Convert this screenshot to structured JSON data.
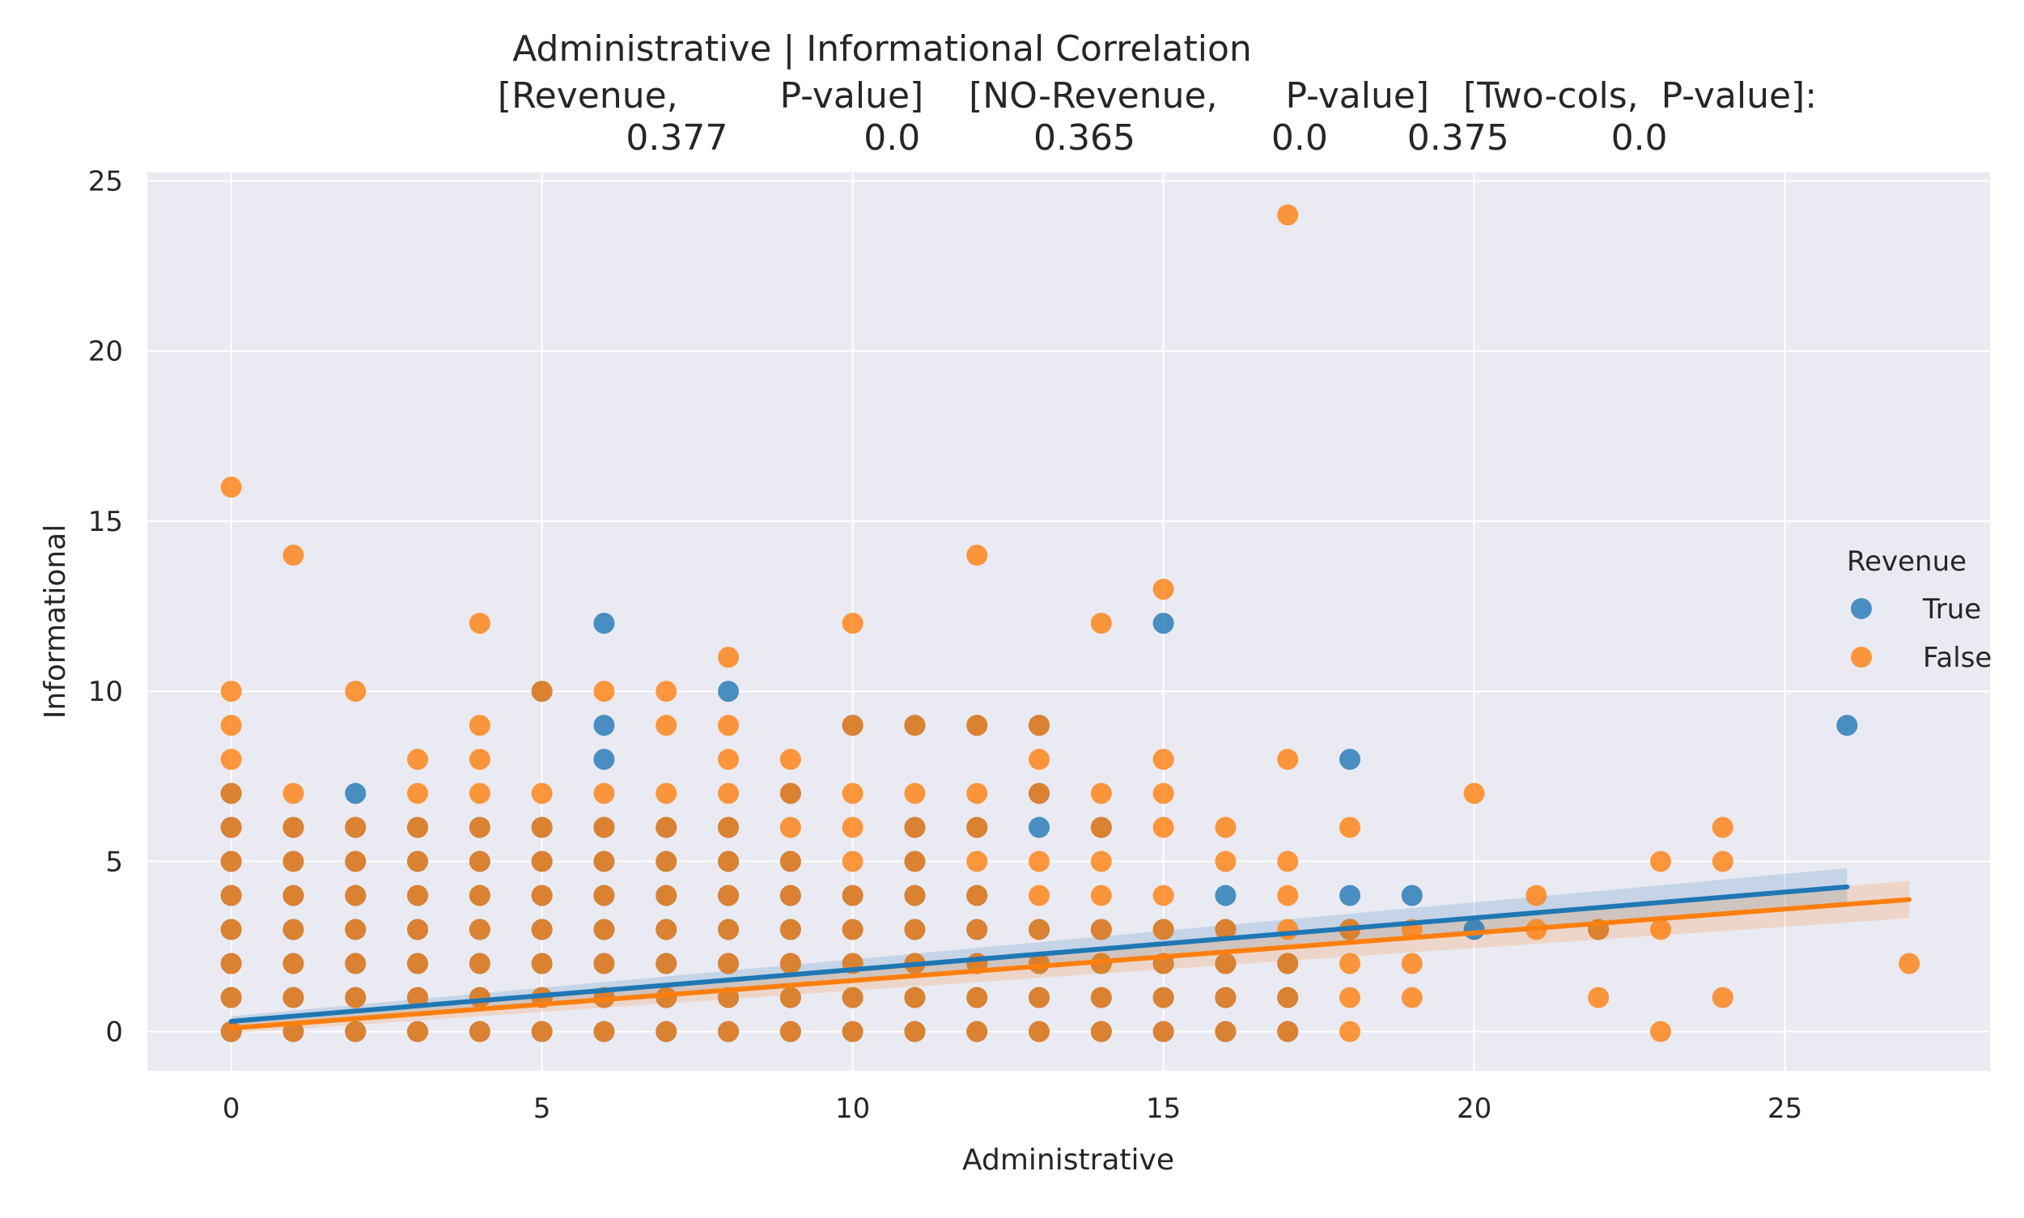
{
  "chart_data": {
    "type": "scatter",
    "title_lines": [
      "Administrative | Informational    Correlation",
      "[Revenue,         P-value]    [NO-Revenue,      P-value]   [Two-cols,  P-value]:",
      "0.377            0.0          0.365            0.0       0.375         0.0"
    ],
    "xlabel": "Administrative",
    "ylabel": "Informational",
    "xlim": [
      -1.35,
      28.3
    ],
    "ylim": [
      -1.15,
      25.25
    ],
    "x_ticks": [
      0,
      5,
      10,
      15,
      20,
      25
    ],
    "y_ticks": [
      0,
      5,
      10,
      15,
      20,
      25
    ],
    "grid": true,
    "legend": {
      "title": "Revenue",
      "placement": "right",
      "entries": [
        "True",
        "False"
      ]
    },
    "colors": {
      "True": "#1f77b4",
      "False": "#ff7f0e",
      "background": "#eaeaf2",
      "grid": "#ffffff"
    },
    "series": [
      {
        "name": "True",
        "points": [
          [
            0,
            0
          ],
          [
            0,
            1
          ],
          [
            0,
            2
          ],
          [
            0,
            3
          ],
          [
            0,
            4
          ],
          [
            0,
            5
          ],
          [
            0,
            6
          ],
          [
            0,
            7
          ],
          [
            1,
            0
          ],
          [
            1,
            1
          ],
          [
            1,
            2
          ],
          [
            1,
            3
          ],
          [
            1,
            4
          ],
          [
            1,
            5
          ],
          [
            1,
            6
          ],
          [
            2,
            0
          ],
          [
            2,
            1
          ],
          [
            2,
            2
          ],
          [
            2,
            3
          ],
          [
            2,
            4
          ],
          [
            2,
            5
          ],
          [
            2,
            6
          ],
          [
            2,
            7
          ],
          [
            3,
            0
          ],
          [
            3,
            1
          ],
          [
            3,
            2
          ],
          [
            3,
            3
          ],
          [
            3,
            4
          ],
          [
            3,
            5
          ],
          [
            3,
            6
          ],
          [
            4,
            0
          ],
          [
            4,
            1
          ],
          [
            4,
            2
          ],
          [
            4,
            3
          ],
          [
            4,
            4
          ],
          [
            4,
            5
          ],
          [
            4,
            6
          ],
          [
            5,
            0
          ],
          [
            5,
            1
          ],
          [
            5,
            2
          ],
          [
            5,
            3
          ],
          [
            5,
            4
          ],
          [
            5,
            5
          ],
          [
            5,
            6
          ],
          [
            5,
            10
          ],
          [
            6,
            0
          ],
          [
            6,
            1
          ],
          [
            6,
            2
          ],
          [
            6,
            3
          ],
          [
            6,
            4
          ],
          [
            6,
            5
          ],
          [
            6,
            6
          ],
          [
            6,
            8
          ],
          [
            6,
            9
          ],
          [
            6,
            12
          ],
          [
            7,
            0
          ],
          [
            7,
            1
          ],
          [
            7,
            2
          ],
          [
            7,
            3
          ],
          [
            7,
            4
          ],
          [
            7,
            5
          ],
          [
            7,
            6
          ],
          [
            8,
            0
          ],
          [
            8,
            1
          ],
          [
            8,
            2
          ],
          [
            8,
            3
          ],
          [
            8,
            4
          ],
          [
            8,
            5
          ],
          [
            8,
            6
          ],
          [
            8,
            10
          ],
          [
            9,
            0
          ],
          [
            9,
            1
          ],
          [
            9,
            2
          ],
          [
            9,
            3
          ],
          [
            9,
            4
          ],
          [
            9,
            5
          ],
          [
            9,
            7
          ],
          [
            10,
            0
          ],
          [
            10,
            1
          ],
          [
            10,
            2
          ],
          [
            10,
            3
          ],
          [
            10,
            4
          ],
          [
            10,
            9
          ],
          [
            11,
            0
          ],
          [
            11,
            1
          ],
          [
            11,
            2
          ],
          [
            11,
            3
          ],
          [
            11,
            4
          ],
          [
            11,
            5
          ],
          [
            11,
            6
          ],
          [
            11,
            9
          ],
          [
            12,
            0
          ],
          [
            12,
            1
          ],
          [
            12,
            2
          ],
          [
            12,
            3
          ],
          [
            12,
            4
          ],
          [
            12,
            6
          ],
          [
            12,
            9
          ],
          [
            13,
            0
          ],
          [
            13,
            1
          ],
          [
            13,
            2
          ],
          [
            13,
            3
          ],
          [
            13,
            6
          ],
          [
            13,
            7
          ],
          [
            13,
            9
          ],
          [
            14,
            0
          ],
          [
            14,
            1
          ],
          [
            14,
            2
          ],
          [
            14,
            3
          ],
          [
            14,
            6
          ],
          [
            15,
            0
          ],
          [
            15,
            1
          ],
          [
            15,
            2
          ],
          [
            15,
            3
          ],
          [
            15,
            12
          ],
          [
            16,
            0
          ],
          [
            16,
            1
          ],
          [
            16,
            2
          ],
          [
            16,
            3
          ],
          [
            16,
            4
          ],
          [
            17,
            0
          ],
          [
            17,
            1
          ],
          [
            17,
            2
          ],
          [
            18,
            3
          ],
          [
            18,
            4
          ],
          [
            18,
            8
          ],
          [
            19,
            4
          ],
          [
            20,
            3
          ],
          [
            22,
            3
          ],
          [
            26,
            9
          ]
        ],
        "regression": {
          "x_range": [
            0,
            26
          ],
          "intercept": 0.3,
          "slope": 0.152
        }
      },
      {
        "name": "False",
        "points": [
          [
            0,
            0
          ],
          [
            0,
            1
          ],
          [
            0,
            2
          ],
          [
            0,
            3
          ],
          [
            0,
            4
          ],
          [
            0,
            5
          ],
          [
            0,
            6
          ],
          [
            0,
            7
          ],
          [
            0,
            8
          ],
          [
            0,
            9
          ],
          [
            0,
            10
          ],
          [
            0,
            16
          ],
          [
            1,
            0
          ],
          [
            1,
            1
          ],
          [
            1,
            2
          ],
          [
            1,
            3
          ],
          [
            1,
            4
          ],
          [
            1,
            5
          ],
          [
            1,
            6
          ],
          [
            1,
            7
          ],
          [
            1,
            14
          ],
          [
            2,
            0
          ],
          [
            2,
            1
          ],
          [
            2,
            2
          ],
          [
            2,
            3
          ],
          [
            2,
            4
          ],
          [
            2,
            5
          ],
          [
            2,
            6
          ],
          [
            2,
            10
          ],
          [
            3,
            0
          ],
          [
            3,
            1
          ],
          [
            3,
            2
          ],
          [
            3,
            3
          ],
          [
            3,
            4
          ],
          [
            3,
            5
          ],
          [
            3,
            6
          ],
          [
            3,
            7
          ],
          [
            3,
            8
          ],
          [
            4,
            0
          ],
          [
            4,
            1
          ],
          [
            4,
            2
          ],
          [
            4,
            3
          ],
          [
            4,
            4
          ],
          [
            4,
            5
          ],
          [
            4,
            6
          ],
          [
            4,
            7
          ],
          [
            4,
            8
          ],
          [
            4,
            9
          ],
          [
            4,
            12
          ],
          [
            5,
            0
          ],
          [
            5,
            1
          ],
          [
            5,
            2
          ],
          [
            5,
            3
          ],
          [
            5,
            4
          ],
          [
            5,
            5
          ],
          [
            5,
            6
          ],
          [
            5,
            7
          ],
          [
            5,
            10
          ],
          [
            6,
            0
          ],
          [
            6,
            1
          ],
          [
            6,
            2
          ],
          [
            6,
            3
          ],
          [
            6,
            4
          ],
          [
            6,
            5
          ],
          [
            6,
            6
          ],
          [
            6,
            7
          ],
          [
            6,
            10
          ],
          [
            7,
            0
          ],
          [
            7,
            1
          ],
          [
            7,
            2
          ],
          [
            7,
            3
          ],
          [
            7,
            4
          ],
          [
            7,
            5
          ],
          [
            7,
            6
          ],
          [
            7,
            7
          ],
          [
            7,
            9
          ],
          [
            7,
            10
          ],
          [
            8,
            0
          ],
          [
            8,
            1
          ],
          [
            8,
            2
          ],
          [
            8,
            3
          ],
          [
            8,
            4
          ],
          [
            8,
            5
          ],
          [
            8,
            6
          ],
          [
            8,
            7
          ],
          [
            8,
            8
          ],
          [
            8,
            9
          ],
          [
            8,
            11
          ],
          [
            9,
            0
          ],
          [
            9,
            1
          ],
          [
            9,
            2
          ],
          [
            9,
            3
          ],
          [
            9,
            4
          ],
          [
            9,
            5
          ],
          [
            9,
            6
          ],
          [
            9,
            7
          ],
          [
            9,
            8
          ],
          [
            10,
            0
          ],
          [
            10,
            1
          ],
          [
            10,
            2
          ],
          [
            10,
            3
          ],
          [
            10,
            4
          ],
          [
            10,
            5
          ],
          [
            10,
            6
          ],
          [
            10,
            7
          ],
          [
            10,
            9
          ],
          [
            10,
            12
          ],
          [
            11,
            0
          ],
          [
            11,
            1
          ],
          [
            11,
            2
          ],
          [
            11,
            3
          ],
          [
            11,
            4
          ],
          [
            11,
            5
          ],
          [
            11,
            6
          ],
          [
            11,
            7
          ],
          [
            11,
            9
          ],
          [
            12,
            0
          ],
          [
            12,
            1
          ],
          [
            12,
            2
          ],
          [
            12,
            3
          ],
          [
            12,
            4
          ],
          [
            12,
            5
          ],
          [
            12,
            6
          ],
          [
            12,
            7
          ],
          [
            12,
            9
          ],
          [
            12,
            14
          ],
          [
            13,
            0
          ],
          [
            13,
            1
          ],
          [
            13,
            2
          ],
          [
            13,
            3
          ],
          [
            13,
            4
          ],
          [
            13,
            5
          ],
          [
            13,
            7
          ],
          [
            13,
            8
          ],
          [
            13,
            9
          ],
          [
            14,
            0
          ],
          [
            14,
            1
          ],
          [
            14,
            2
          ],
          [
            14,
            3
          ],
          [
            14,
            4
          ],
          [
            14,
            5
          ],
          [
            14,
            6
          ],
          [
            14,
            7
          ],
          [
            14,
            12
          ],
          [
            15,
            0
          ],
          [
            15,
            1
          ],
          [
            15,
            2
          ],
          [
            15,
            3
          ],
          [
            15,
            4
          ],
          [
            15,
            6
          ],
          [
            15,
            7
          ],
          [
            15,
            8
          ],
          [
            15,
            13
          ],
          [
            16,
            0
          ],
          [
            16,
            1
          ],
          [
            16,
            2
          ],
          [
            16,
            3
          ],
          [
            16,
            5
          ],
          [
            16,
            6
          ],
          [
            17,
            0
          ],
          [
            17,
            1
          ],
          [
            17,
            2
          ],
          [
            17,
            3
          ],
          [
            17,
            4
          ],
          [
            17,
            5
          ],
          [
            17,
            8
          ],
          [
            17,
            24
          ],
          [
            18,
            0
          ],
          [
            18,
            1
          ],
          [
            18,
            2
          ],
          [
            18,
            3
          ],
          [
            18,
            6
          ],
          [
            19,
            1
          ],
          [
            19,
            2
          ],
          [
            19,
            3
          ],
          [
            20,
            7
          ],
          [
            21,
            3
          ],
          [
            21,
            4
          ],
          [
            22,
            1
          ],
          [
            22,
            3
          ],
          [
            23,
            0
          ],
          [
            23,
            3
          ],
          [
            23,
            5
          ],
          [
            24,
            1
          ],
          [
            24,
            5
          ],
          [
            24,
            6
          ],
          [
            27,
            2
          ]
        ],
        "regression": {
          "x_range": [
            0,
            27
          ],
          "intercept": 0.1,
          "slope": 0.14
        }
      }
    ]
  }
}
